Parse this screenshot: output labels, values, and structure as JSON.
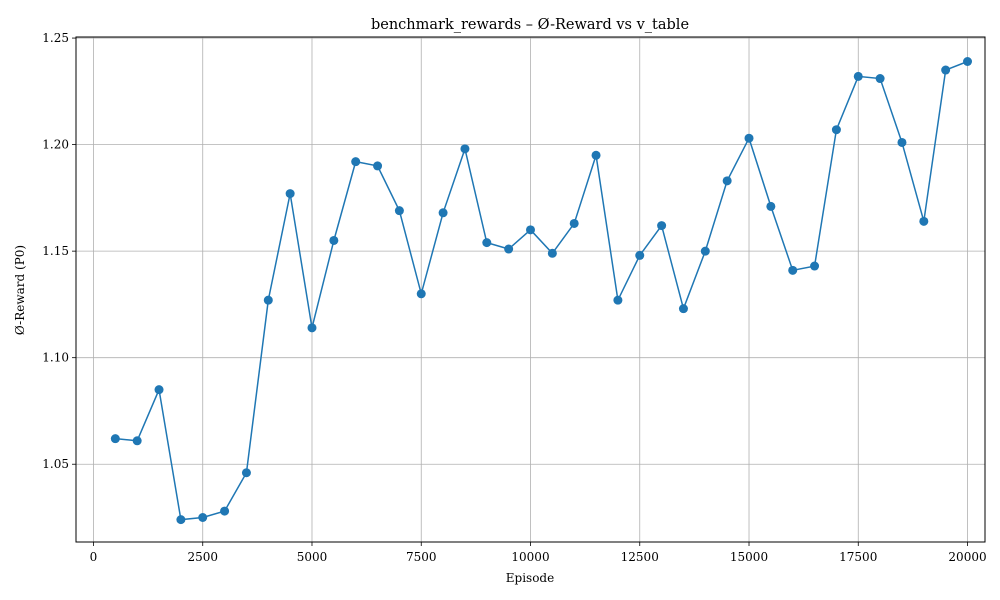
{
  "chart_data": {
    "type": "line",
    "title": "benchmark_rewards – Ø-Reward vs v_table",
    "xlabel": "Episode",
    "ylabel": "Ø-Reward (P0)",
    "xlim": [
      -400,
      20400
    ],
    "ylim": [
      1.0135,
      1.2505
    ],
    "xticks": [
      0,
      2500,
      5000,
      7500,
      10000,
      12500,
      15000,
      17500,
      20000
    ],
    "yticks": [
      1.05,
      1.1,
      1.15,
      1.2,
      1.25
    ],
    "ytick_labels": [
      "1.05",
      "1.10",
      "1.15",
      "1.20",
      "1.25"
    ],
    "grid": true,
    "line_color": "#1f77b4",
    "marker": "circle",
    "series": [
      {
        "x": [
          500,
          1000,
          1500,
          2000,
          2500,
          3000,
          3500,
          4000,
          4500,
          5000,
          5500,
          6000,
          6500,
          7000,
          7500,
          8000,
          8500,
          9000,
          9500,
          10000,
          10500,
          11000,
          11500,
          12000,
          12500,
          13000,
          13500,
          14000,
          14500,
          15000,
          15500,
          16000,
          16500,
          17000,
          17500,
          18000,
          18500,
          19000,
          19500,
          20000
        ],
        "values": [
          1.062,
          1.061,
          1.085,
          1.024,
          1.025,
          1.028,
          1.046,
          1.127,
          1.177,
          1.114,
          1.155,
          1.192,
          1.19,
          1.169,
          1.13,
          1.168,
          1.198,
          1.154,
          1.151,
          1.16,
          1.149,
          1.163,
          1.195,
          1.127,
          1.148,
          1.162,
          1.123,
          1.15,
          1.183,
          1.203,
          1.171,
          1.141,
          1.143,
          1.207,
          1.232,
          1.231,
          1.201,
          1.164,
          1.235,
          1.239
        ]
      }
    ]
  }
}
